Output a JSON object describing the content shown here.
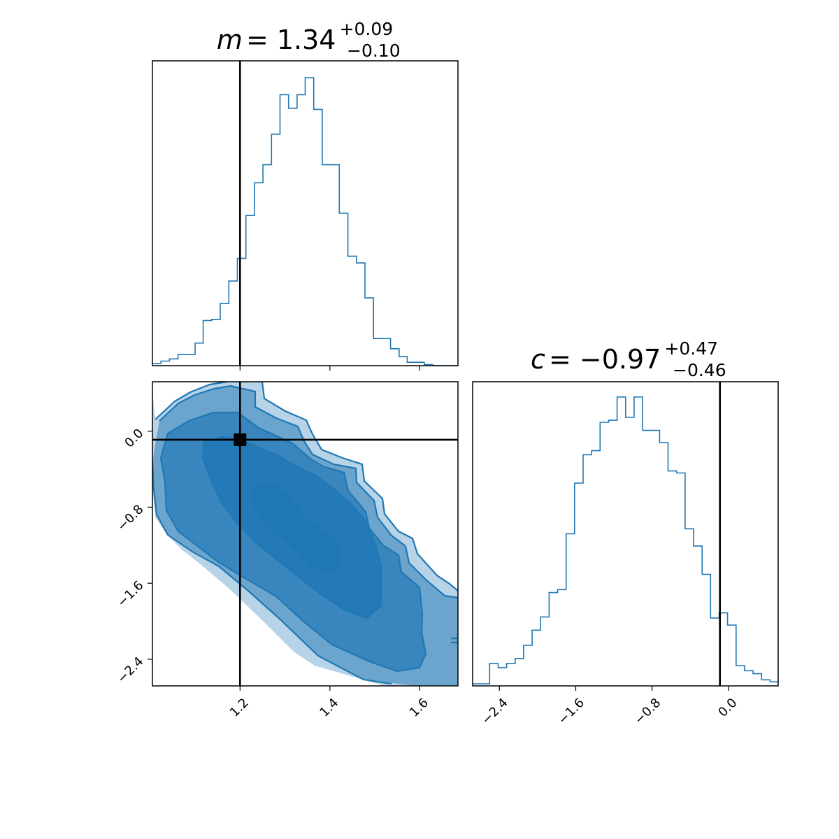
{
  "chart_data": {
    "type": "corner",
    "parameters": [
      "m",
      "c"
    ],
    "colors": {
      "series": "#1f77b4",
      "truth": "#000000"
    },
    "truth": {
      "m": 1.2,
      "c": -0.09
    },
    "titles": {
      "m": {
        "symbol": "m",
        "median": "1.34",
        "plus": "+0.09",
        "minus": "−0.10"
      },
      "c": {
        "symbol": "c",
        "median": "−0.97",
        "plus": "+0.47",
        "minus": "−0.46"
      }
    },
    "axes": {
      "m": {
        "range": [
          1.005,
          1.685
        ],
        "ticks": [
          1.2,
          1.4,
          1.6
        ],
        "ticklabels": [
          "1.2",
          "1.4",
          "1.6"
        ]
      },
      "c": {
        "range": [
          -2.68,
          0.52
        ],
        "ticks": [
          -2.4,
          -1.6,
          -0.8,
          0.0
        ],
        "ticklabels": [
          "−2.4",
          "−1.6",
          "−0.8",
          "0.0"
        ]
      }
    },
    "panels": [
      {
        "id": "hist-m",
        "type": "histogram",
        "x": "m",
        "bin_edges": [
          1.005,
          1.024,
          1.043,
          1.062,
          1.081,
          1.1,
          1.118,
          1.137,
          1.156,
          1.175,
          1.194,
          1.213,
          1.232,
          1.251,
          1.27,
          1.289,
          1.308,
          1.327,
          1.345,
          1.364,
          1.383,
          1.402,
          1.421,
          1.44,
          1.459,
          1.478,
          1.497,
          1.516,
          1.535,
          1.554,
          1.572,
          1.591,
          1.61,
          1.629,
          1.648,
          1.667,
          1.685
        ],
        "counts": [
          2,
          4,
          6,
          10,
          10,
          20,
          40,
          41,
          55,
          75,
          95,
          133,
          162,
          178,
          205,
          240,
          228,
          240,
          255,
          227,
          178,
          178,
          135,
          97,
          91,
          60,
          24,
          24,
          15,
          8,
          3,
          3,
          1,
          0,
          0,
          0
        ],
        "ylim": [
          0,
          270
        ]
      },
      {
        "id": "contour-m-c",
        "type": "contour",
        "x": "m",
        "y": "c",
        "levels": [
          "outer",
          "2",
          "3",
          "4",
          "5",
          "core"
        ],
        "fill_opacity": [
          0.32,
          0.5,
          0.66,
          0.82,
          1.0
        ]
      },
      {
        "id": "hist-c",
        "type": "histogram",
        "x": "c",
        "bin_edges": [
          -2.68,
          -2.591,
          -2.502,
          -2.413,
          -2.324,
          -2.235,
          -2.146,
          -2.057,
          -1.968,
          -1.879,
          -1.79,
          -1.701,
          -1.612,
          -1.523,
          -1.434,
          -1.345,
          -1.256,
          -1.167,
          -1.078,
          -0.989,
          -0.9,
          -0.811,
          -0.722,
          -0.633,
          -0.544,
          -0.455,
          -0.366,
          -0.277,
          -0.188,
          -0.099,
          -0.01,
          0.079,
          0.168,
          0.257,
          0.346,
          0.435,
          0.52
        ],
        "counts": [
          2,
          2,
          22,
          18,
          22,
          27,
          40,
          55,
          68,
          92,
          95,
          150,
          200,
          228,
          232,
          260,
          262,
          285,
          265,
          285,
          252,
          252,
          240,
          212,
          210,
          155,
          138,
          110,
          67,
          72,
          60,
          20,
          15,
          12,
          6,
          4
        ],
        "ylim": [
          0,
          300
        ]
      }
    ]
  }
}
